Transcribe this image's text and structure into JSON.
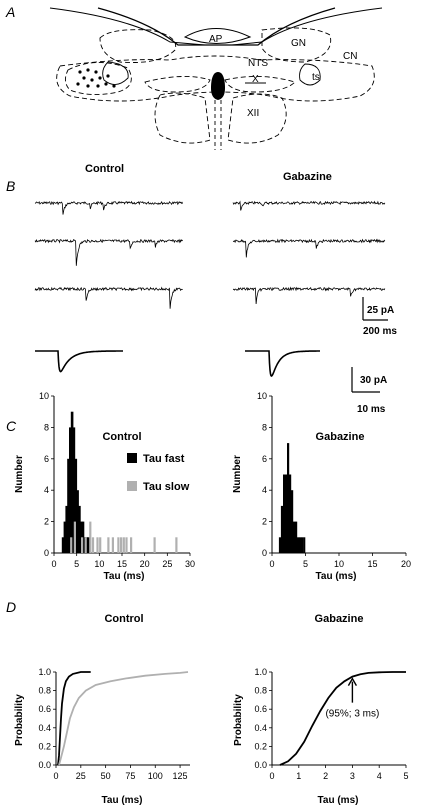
{
  "panels": {
    "a": "A",
    "b": "B",
    "c": "C",
    "d": "D"
  },
  "anatomy": {
    "ap": "AP",
    "gn": "GN",
    "cn": "CN",
    "nts": "NTS",
    "x": "X",
    "ts": "ts",
    "xii": "XII"
  },
  "traces": {
    "control_title": "Control",
    "gabazine_title": "Gabazine",
    "scale1_amp": "25 pA",
    "scale1_time": "200 ms",
    "scale2_amp": "30 pA",
    "scale2_time": "10 ms"
  },
  "chart_data": [
    {
      "id": "hist_control",
      "type": "bar",
      "title": "Control",
      "xlabel": "Tau (ms)",
      "ylabel": "Number",
      "xlim": [
        0,
        30
      ],
      "ylim": [
        0,
        10
      ],
      "xticks": [
        "0",
        "5",
        "10",
        "15",
        "20",
        "25",
        "30"
      ],
      "yticks": [
        "0",
        "2",
        "4",
        "6",
        "8",
        "10"
      ],
      "legend": [
        "Tau fast",
        "Tau slow"
      ],
      "colors": {
        "Tau fast": "#000000",
        "Tau slow": "#b0b0b0"
      },
      "series": [
        {
          "name": "Tau fast",
          "x": [
            2.0,
            2.4,
            2.8,
            3.2,
            3.6,
            4.0,
            4.4,
            4.8,
            5.2,
            5.6,
            6.0,
            6.4,
            6.8,
            7.2,
            7.6
          ],
          "values": [
            1,
            2,
            3,
            6,
            8,
            9,
            8,
            6,
            4,
            3,
            2,
            2,
            1,
            1,
            1
          ]
        },
        {
          "name": "Tau slow",
          "x": [
            3.8,
            4.6,
            6.2,
            7.0,
            8.0,
            8.6,
            9.6,
            10.2,
            12.0,
            13.0,
            14.2,
            14.8,
            15.4,
            16.0,
            17.0,
            22.2,
            27.0
          ],
          "values": [
            1,
            2,
            1,
            1,
            2,
            1,
            1,
            1,
            1,
            1,
            1,
            1,
            1,
            1,
            1,
            1,
            1
          ]
        }
      ]
    },
    {
      "id": "hist_gabazine",
      "type": "bar",
      "title": "Gabazine",
      "xlabel": "Tau (ms)",
      "ylabel": "Number",
      "xlim": [
        0,
        20
      ],
      "ylim": [
        0,
        10
      ],
      "xticks": [
        "0",
        "5",
        "10",
        "15",
        "20"
      ],
      "yticks": [
        "0",
        "2",
        "4",
        "6",
        "8",
        "10"
      ],
      "series": [
        {
          "name": "Tau fast",
          "x": [
            1.2,
            1.5,
            1.8,
            2.1,
            2.4,
            2.7,
            3.0,
            3.3,
            3.6,
            3.9,
            4.2,
            4.5,
            4.8
          ],
          "values": [
            1,
            3,
            5,
            5,
            7,
            5,
            4,
            2,
            2,
            1,
            1,
            1,
            1
          ]
        }
      ]
    },
    {
      "id": "cdf_control",
      "type": "line",
      "title": "Control",
      "xlabel": "Tau (ms)",
      "ylabel": "Probability",
      "xlim": [
        0,
        135
      ],
      "ylim": [
        0,
        1.0
      ],
      "xticks": [
        "0",
        "25",
        "50",
        "75",
        "100",
        "125"
      ],
      "yticks": [
        "0.0",
        "0.2",
        "0.4",
        "0.6",
        "0.8",
        "1.0"
      ],
      "colors": {
        "fast": "#000000",
        "slow": "#b0b0b0"
      },
      "series": [
        {
          "x": [
            2,
            3,
            4,
            5,
            6,
            8,
            10,
            13,
            17,
            25,
            35
          ],
          "values": [
            0,
            0.1,
            0.3,
            0.5,
            0.66,
            0.82,
            0.9,
            0.95,
            0.98,
            1.0,
            1.0
          ]
        },
        {
          "x": [
            3,
            5,
            8,
            11,
            14,
            18,
            23,
            30,
            40,
            55,
            70,
            90,
            110,
            125,
            133
          ],
          "values": [
            0,
            0.08,
            0.2,
            0.35,
            0.5,
            0.62,
            0.72,
            0.8,
            0.86,
            0.9,
            0.93,
            0.96,
            0.98,
            0.99,
            1.0
          ]
        }
      ]
    },
    {
      "id": "cdf_gabazine",
      "type": "line",
      "title": "Gabazine",
      "xlabel": "Tau (ms)",
      "ylabel": "Probability",
      "xlim": [
        0,
        5
      ],
      "ylim": [
        0,
        1.0
      ],
      "xticks": [
        "0",
        "1",
        "2",
        "3",
        "4",
        "5"
      ],
      "yticks": [
        "0.0",
        "0.2",
        "0.4",
        "0.6",
        "0.8",
        "1.0"
      ],
      "annotation": {
        "text": "(95%; 3 ms)",
        "x": 3,
        "y": 0.95
      },
      "series": [
        {
          "x": [
            0.3,
            0.6,
            0.9,
            1.2,
            1.5,
            1.8,
            2.1,
            2.4,
            2.7,
            3.0,
            3.3,
            3.6,
            4.0,
            4.5,
            5.0
          ],
          "values": [
            0,
            0.04,
            0.12,
            0.25,
            0.42,
            0.58,
            0.72,
            0.83,
            0.9,
            0.95,
            0.975,
            0.99,
            0.997,
            1.0,
            1.0
          ]
        }
      ]
    }
  ]
}
